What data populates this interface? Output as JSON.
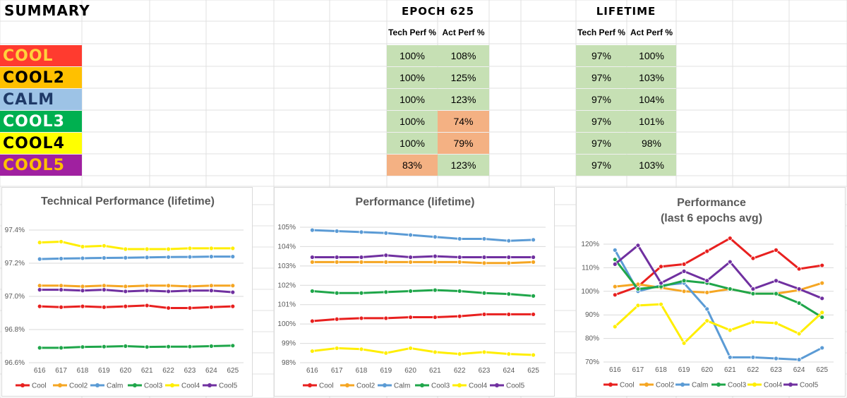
{
  "summary": {
    "title": "SUMMARY",
    "epoch_title": "EPOCH 625",
    "lifetime_title": "LIFETIME",
    "col_tech": "Tech Perf %",
    "col_act": "Act Perf %",
    "rows": [
      {
        "name": "COOL",
        "bg": "#ff3b2f",
        "fg": "#ffd23c",
        "epoch_tech": "100%",
        "epoch_act": "108%",
        "life_tech": "97%",
        "life_act": "100%",
        "epoch_tech_bg": "#c6e0b4",
        "epoch_act_bg": "#c6e0b4"
      },
      {
        "name": "COOL2",
        "bg": "#ffc000",
        "fg": "#000000",
        "epoch_tech": "100%",
        "epoch_act": "125%",
        "life_tech": "97%",
        "life_act": "103%",
        "epoch_tech_bg": "#c6e0b4",
        "epoch_act_bg": "#c6e0b4"
      },
      {
        "name": "CALM",
        "bg": "#9dc3e6",
        "fg": "#1f3a68",
        "epoch_tech": "100%",
        "epoch_act": "123%",
        "life_tech": "97%",
        "life_act": "104%",
        "epoch_tech_bg": "#c6e0b4",
        "epoch_act_bg": "#c6e0b4"
      },
      {
        "name": "COOL3",
        "bg": "#00b050",
        "fg": "#ffffff",
        "epoch_tech": "100%",
        "epoch_act": "74%",
        "life_tech": "97%",
        "life_act": "101%",
        "epoch_tech_bg": "#c6e0b4",
        "epoch_act_bg": "#f4b183"
      },
      {
        "name": "COOL4",
        "bg": "#ffff00",
        "fg": "#000000",
        "epoch_tech": "100%",
        "epoch_act": "79%",
        "life_tech": "97%",
        "life_act": "98%",
        "epoch_tech_bg": "#c6e0b4",
        "epoch_act_bg": "#f4b183"
      },
      {
        "name": "COOL5",
        "bg": "#a020a0",
        "fg": "#ffc000",
        "epoch_tech": "83%",
        "epoch_act": "123%",
        "life_tech": "97%",
        "life_act": "103%",
        "epoch_tech_bg": "#f4b183",
        "epoch_act_bg": "#c6e0b4"
      }
    ]
  },
  "series_colors": {
    "Cool": "#e8201f",
    "Cool2": "#f5a623",
    "Calm": "#5b9bd5",
    "Cool3": "#1fa64a",
    "Cool4": "#ffee00",
    "Cool5": "#7030a0"
  },
  "chart_data": [
    {
      "type": "line",
      "title": "Technical Performance (lifetime)",
      "x": [
        "616",
        "617",
        "618",
        "619",
        "620",
        "621",
        "622",
        "623",
        "624",
        "625"
      ],
      "ylim": [
        96.6,
        97.4
      ],
      "yticks": [
        "96.6%",
        "96.8%",
        "97.0%",
        "97.2%",
        "97.4%"
      ],
      "ytick_values": [
        96.6,
        96.8,
        97.0,
        97.2,
        97.4
      ],
      "grid": true,
      "legend": "bottom",
      "series": [
        {
          "name": "Cool",
          "values": [
            96.94,
            96.935,
            96.94,
            96.935,
            96.94,
            96.945,
            96.93,
            96.93,
            96.935,
            96.94
          ]
        },
        {
          "name": "Cool2",
          "values": [
            97.065,
            97.065,
            97.06,
            97.065,
            97.06,
            97.065,
            97.065,
            97.06,
            97.065,
            97.065
          ]
        },
        {
          "name": "Calm",
          "values": [
            97.225,
            97.228,
            97.23,
            97.232,
            97.233,
            97.235,
            97.237,
            97.238,
            97.24,
            97.24
          ]
        },
        {
          "name": "Cool3",
          "values": [
            96.69,
            96.69,
            96.695,
            96.697,
            96.7,
            96.695,
            96.697,
            96.697,
            96.7,
            96.703
          ]
        },
        {
          "name": "Cool4",
          "values": [
            97.325,
            97.33,
            97.3,
            97.305,
            97.285,
            97.285,
            97.285,
            97.29,
            97.29,
            97.29
          ]
        },
        {
          "name": "Cool5",
          "values": [
            97.04,
            97.04,
            97.035,
            97.04,
            97.03,
            97.035,
            97.03,
            97.035,
            97.035,
            97.025
          ]
        }
      ]
    },
    {
      "type": "line",
      "title": "Performance (lifetime)",
      "x": [
        "616",
        "617",
        "618",
        "619",
        "620",
        "621",
        "622",
        "623",
        "624",
        "625"
      ],
      "ylim": [
        98,
        105
      ],
      "yticks": [
        "98%",
        "99%",
        "100%",
        "101%",
        "102%",
        "103%",
        "104%",
        "105%"
      ],
      "ytick_values": [
        98,
        99,
        100,
        101,
        102,
        103,
        104,
        105
      ],
      "grid": true,
      "legend": "bottom",
      "series": [
        {
          "name": "Cool",
          "values": [
            100.15,
            100.25,
            100.3,
            100.3,
            100.35,
            100.35,
            100.4,
            100.5,
            100.5,
            100.5
          ]
        },
        {
          "name": "Cool2",
          "values": [
            103.2,
            103.2,
            103.2,
            103.2,
            103.2,
            103.2,
            103.2,
            103.15,
            103.15,
            103.2
          ]
        },
        {
          "name": "Calm",
          "values": [
            104.85,
            104.8,
            104.75,
            104.7,
            104.6,
            104.5,
            104.4,
            104.4,
            104.3,
            104.35
          ]
        },
        {
          "name": "Cool3",
          "values": [
            101.7,
            101.6,
            101.6,
            101.65,
            101.7,
            101.75,
            101.7,
            101.6,
            101.55,
            101.45
          ]
        },
        {
          "name": "Cool4",
          "values": [
            98.6,
            98.75,
            98.7,
            98.5,
            98.75,
            98.55,
            98.45,
            98.55,
            98.45,
            98.4
          ]
        },
        {
          "name": "Cool5",
          "values": [
            103.45,
            103.45,
            103.45,
            103.55,
            103.45,
            103.5,
            103.45,
            103.45,
            103.45,
            103.45
          ]
        }
      ]
    },
    {
      "type": "line",
      "title": "Performance",
      "subtitle": "(last 6 epochs avg)",
      "x": [
        "616",
        "617",
        "618",
        "619",
        "620",
        "621",
        "622",
        "623",
        "624",
        "625"
      ],
      "ylim": [
        70,
        120
      ],
      "yticks": [
        "70%",
        "80%",
        "90%",
        "100%",
        "110%",
        "120%"
      ],
      "ytick_values": [
        70,
        80,
        90,
        100,
        110,
        120
      ],
      "grid": true,
      "legend": "bottom",
      "series": [
        {
          "name": "Cool",
          "values": [
            98.5,
            102,
            110.5,
            111.5,
            117,
            122.5,
            114,
            117.5,
            109.5,
            111
          ]
        },
        {
          "name": "Cool2",
          "values": [
            102,
            103,
            101.5,
            100,
            99.5,
            101,
            99,
            99,
            100.5,
            103.5
          ]
        },
        {
          "name": "Calm",
          "values": [
            117.5,
            100,
            102.5,
            103.5,
            92.5,
            72,
            72,
            71.5,
            71,
            76
          ]
        },
        {
          "name": "Cool3",
          "values": [
            113.5,
            101,
            102,
            104.5,
            103.5,
            101,
            99,
            99,
            95,
            89
          ]
        },
        {
          "name": "Cool4",
          "values": [
            85,
            94,
            94.5,
            78,
            87.5,
            83.5,
            87,
            86.5,
            82,
            91
          ]
        },
        {
          "name": "Cool5",
          "values": [
            111.5,
            119.5,
            103.5,
            108.5,
            104.5,
            112.5,
            101,
            104.5,
            101,
            97
          ]
        }
      ]
    }
  ]
}
